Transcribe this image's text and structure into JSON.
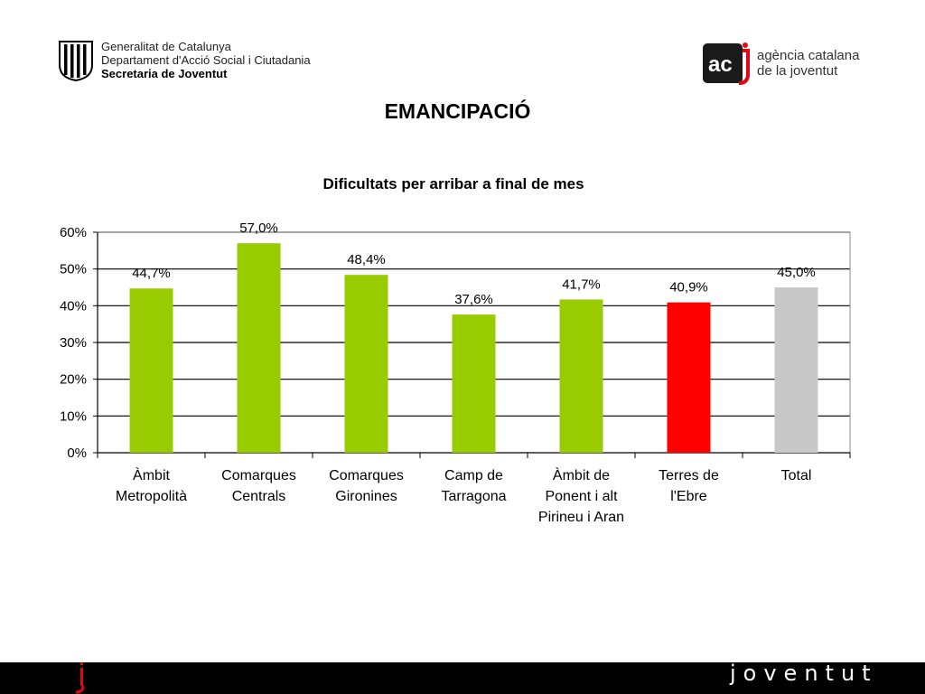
{
  "header": {
    "left": {
      "line1": "Generalitat de Catalunya",
      "line2": "Departament d'Acció Social i Ciutadania",
      "line3": "Secretaria de Joventut"
    },
    "right": {
      "logo_text": "ac",
      "line1": "agència catalana",
      "line2": "de la joventut"
    }
  },
  "page_title": "EMANCIPACIÓ",
  "footer": {
    "wordmark": "joventut",
    "accent_color": "#e30613"
  },
  "chart_data": {
    "type": "bar",
    "title": "Dificultats per arribar a final de mes",
    "xlabel": "",
    "ylabel": "",
    "ylim": [
      0,
      60
    ],
    "yticks": [
      "0%",
      "10%",
      "20%",
      "30%",
      "40%",
      "50%",
      "60%"
    ],
    "grid": true,
    "categories": [
      [
        "Àmbit",
        "Metropolità"
      ],
      [
        "Comarques",
        "Centrals"
      ],
      [
        "Comarques",
        "Gironines"
      ],
      [
        "Camp de",
        "Tarragona"
      ],
      [
        "Àmbit de",
        "Ponent i alt",
        "Pirineu i Aran"
      ],
      [
        "Terres de",
        "l'Ebre"
      ],
      [
        "Total"
      ]
    ],
    "values": [
      44.7,
      57.0,
      48.4,
      37.6,
      41.7,
      40.9,
      45.0
    ],
    "labels": [
      "44,7%",
      "57,0%",
      "48,4%",
      "37,6%",
      "41,7%",
      "40,9%",
      "45,0%"
    ],
    "colors": [
      "#99cc00",
      "#99cc00",
      "#99cc00",
      "#99cc00",
      "#99cc00",
      "#ff0000",
      "#c8c8c8"
    ]
  }
}
